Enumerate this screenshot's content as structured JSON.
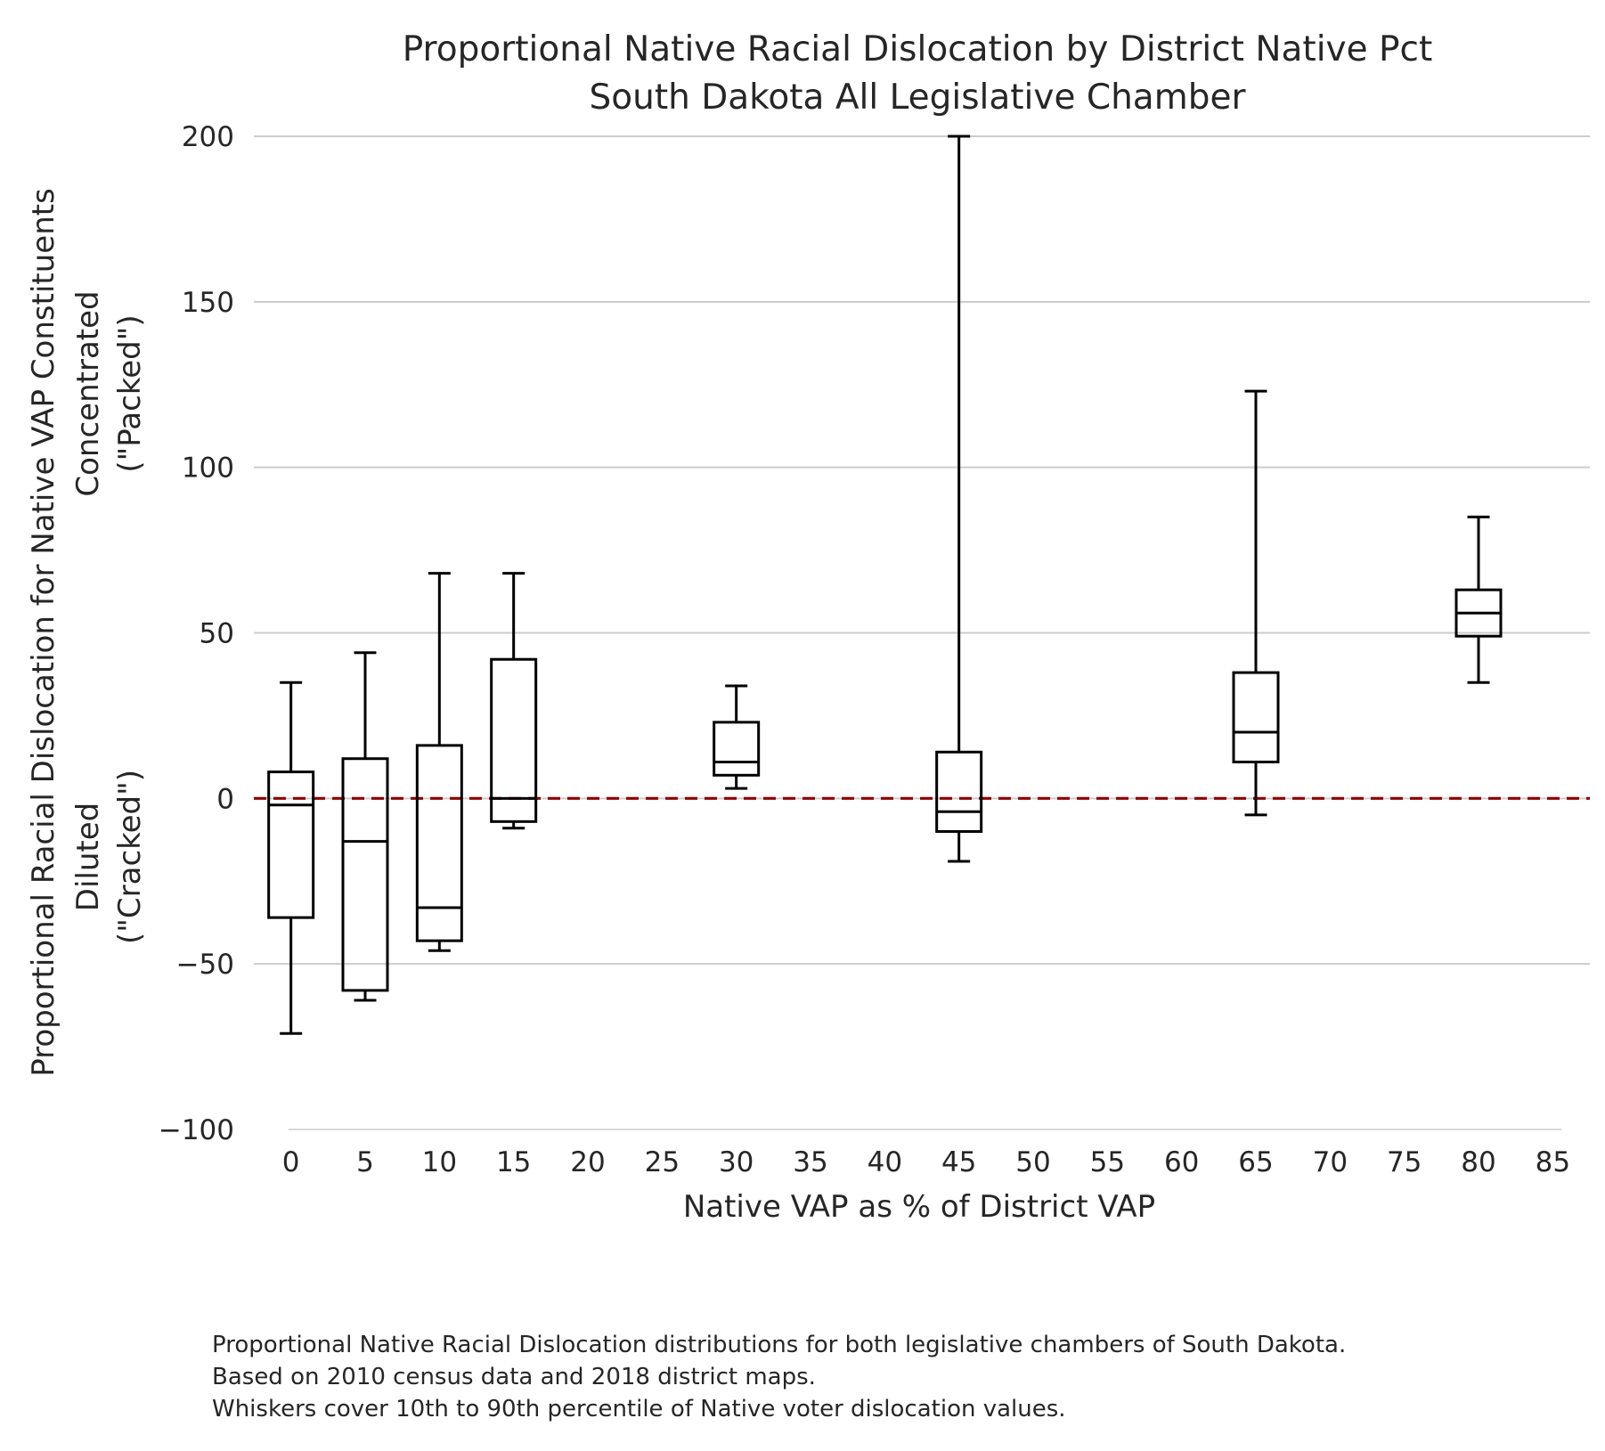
{
  "chart_data": {
    "type": "box",
    "title": [
      "Proportional Native Racial Dislocation by District Native Pct",
      "South Dakota All Legislative Chamber"
    ],
    "xlabel": "Native VAP as % of District VAP",
    "ylabel": [
      "Proportional Racial Dislocation for Native VAP Constituents",
      "Diluted",
      "(\"Cracked\")",
      "Concentrated",
      "(\"Packed\")"
    ],
    "xlim": [
      -2.5,
      87.5
    ],
    "ylim": [
      -100,
      200
    ],
    "x_ticks": [
      0,
      5,
      10,
      15,
      20,
      25,
      30,
      35,
      40,
      45,
      50,
      55,
      60,
      65,
      70,
      75,
      80,
      85
    ],
    "y_ticks": [
      -100,
      -50,
      0,
      50,
      100,
      150,
      200
    ],
    "y_tick_labels": [
      "−100",
      "−50",
      "0",
      "50",
      "100",
      "150",
      "200"
    ],
    "grid": "horizontal",
    "reference_line": {
      "y": 0,
      "style": "dashed",
      "color": "#8b0000"
    },
    "box_color": "#000000",
    "boxes": [
      {
        "x": 0,
        "whisker_low": -71,
        "q1": -36,
        "median": -2,
        "q3": 8,
        "whisker_high": 35
      },
      {
        "x": 5,
        "whisker_low": -61,
        "q1": -58,
        "median": -13,
        "q3": 12,
        "whisker_high": 44
      },
      {
        "x": 10,
        "whisker_low": -46,
        "q1": -43,
        "median": -33,
        "q3": 16,
        "whisker_high": 68
      },
      {
        "x": 15,
        "whisker_low": -9,
        "q1": -7,
        "median": 0,
        "q3": 42,
        "whisker_high": 68
      },
      {
        "x": 30,
        "whisker_low": 3,
        "q1": 7,
        "median": 11,
        "q3": 23,
        "whisker_high": 34
      },
      {
        "x": 45,
        "whisker_low": -19,
        "q1": -10,
        "median": -4,
        "q3": 14,
        "whisker_high": 200
      },
      {
        "x": 65,
        "whisker_low": -5,
        "q1": 11,
        "median": 20,
        "q3": 38,
        "whisker_high": 123
      },
      {
        "x": 80,
        "whisker_low": 35,
        "q1": 49,
        "median": 56,
        "q3": 63,
        "whisker_high": 85
      }
    ]
  },
  "caption": [
    "Proportional Native Racial Dislocation distributions for both legislative chambers of South Dakota.",
    "Based on 2010 census data and 2018 district maps.",
    "Whiskers cover 10th to 90th percentile of Native voter dislocation values."
  ]
}
